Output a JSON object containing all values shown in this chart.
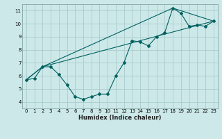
{
  "xlabel": "Humidex (Indice chaleur)",
  "bg_color": "#cce8e8",
  "grid_color": "#aacccc",
  "line_color": "#006060",
  "xlim": [
    -0.5,
    23.5
  ],
  "ylim": [
    3.5,
    11.5
  ],
  "xticks": [
    0,
    1,
    2,
    3,
    4,
    5,
    6,
    7,
    8,
    9,
    10,
    11,
    12,
    13,
    14,
    15,
    16,
    17,
    18,
    19,
    20,
    21,
    22,
    23
  ],
  "yticks": [
    4,
    5,
    6,
    7,
    8,
    9,
    10,
    11
  ],
  "line1_x": [
    0,
    1,
    2,
    3,
    4,
    5,
    6,
    7,
    8,
    9,
    10,
    11,
    12,
    13,
    14,
    15,
    16,
    17,
    18,
    19,
    20,
    21,
    22,
    23
  ],
  "line1_y": [
    5.7,
    5.8,
    6.7,
    6.7,
    6.1,
    5.3,
    4.4,
    4.2,
    4.4,
    4.6,
    4.6,
    6.0,
    7.0,
    8.7,
    8.6,
    8.3,
    9.0,
    9.3,
    11.2,
    10.8,
    9.8,
    9.9,
    9.8,
    10.2
  ],
  "line2_x": [
    0,
    2,
    23
  ],
  "line2_y": [
    5.7,
    6.7,
    10.2
  ],
  "line3_x": [
    0,
    2,
    18,
    23
  ],
  "line3_y": [
    5.7,
    6.7,
    11.2,
    10.2
  ],
  "tick_fontsize": 5,
  "xlabel_fontsize": 6,
  "marker_size": 2.0,
  "linewidth": 0.8
}
